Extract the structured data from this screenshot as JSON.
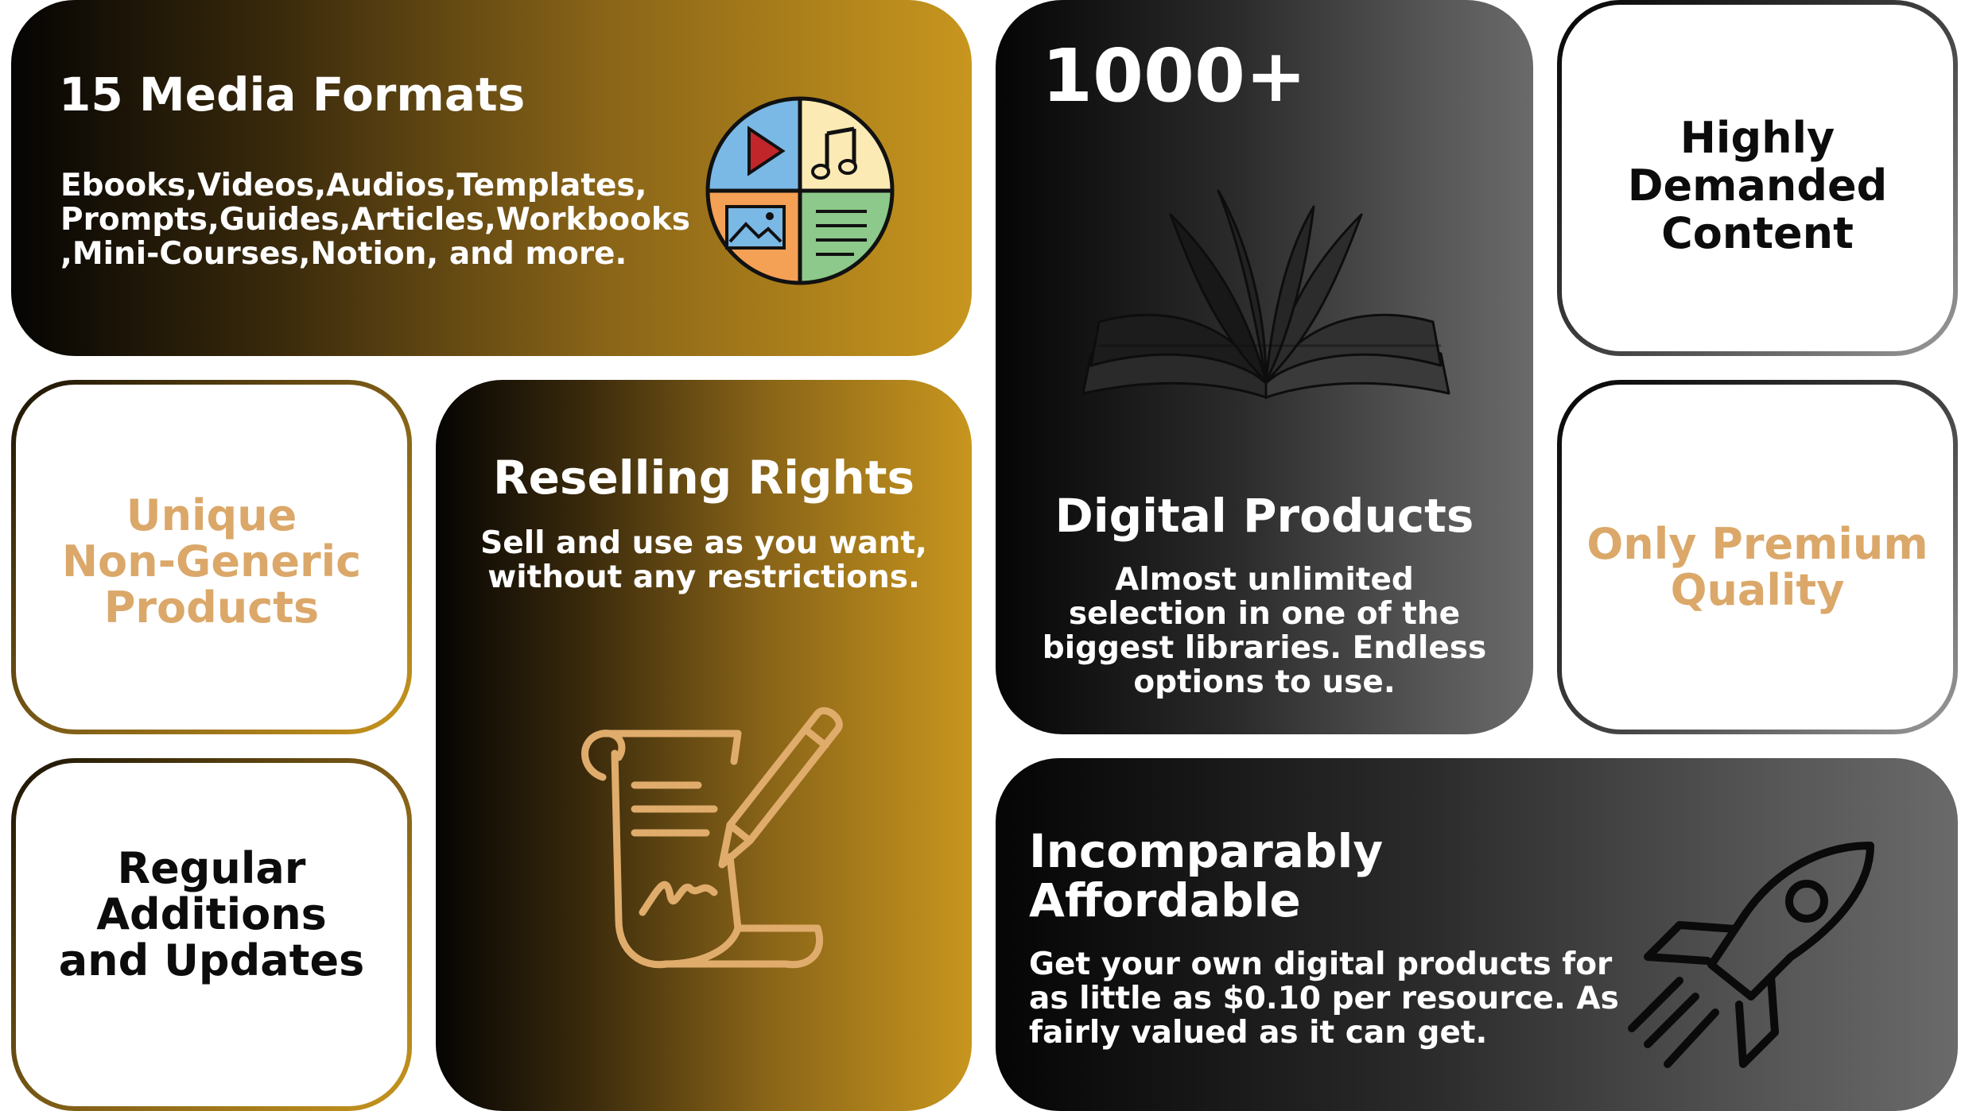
{
  "media_formats": {
    "title": "15 Media Formats",
    "body_lines": [
      "Ebooks,Videos,Audios,Templates,",
      "Prompts,Guides,Articles,Workbooks",
      ",Mini-Courses,Notion, and more."
    ],
    "icon": "media-formats-circle-icon"
  },
  "digital_products": {
    "count": "1000+",
    "title": "Digital Products",
    "body_lines": [
      "Almost unlimited",
      "selection in one of the",
      "biggest libraries. Endless",
      "options to use."
    ],
    "icon": "open-book-icon"
  },
  "highly_demanded": {
    "lines": [
      "Highly",
      "Demanded",
      "Content"
    ]
  },
  "unique_products": {
    "lines": [
      "Unique",
      "Non-Generic",
      "Products"
    ]
  },
  "reselling_rights": {
    "title": "Reselling Rights",
    "body_lines": [
      "Sell and use as you want,",
      "without any restrictions."
    ],
    "icon": "signed-scroll-pen-icon"
  },
  "premium_quality": {
    "lines": [
      "Only Premium",
      "Quality"
    ]
  },
  "regular_additions": {
    "lines": [
      "Regular",
      "Additions",
      "and Updates"
    ]
  },
  "affordable": {
    "title_lines": [
      "Incomparably",
      "Affordable"
    ],
    "body_lines": [
      "Get your own digital products for",
      "as little as $0.10 per resource. As",
      "fairly valued as it can get."
    ],
    "icon": "rocket-icon"
  },
  "colors": {
    "gold": "#c8961e",
    "tan_text": "#dba86a",
    "dark": "#050505"
  }
}
